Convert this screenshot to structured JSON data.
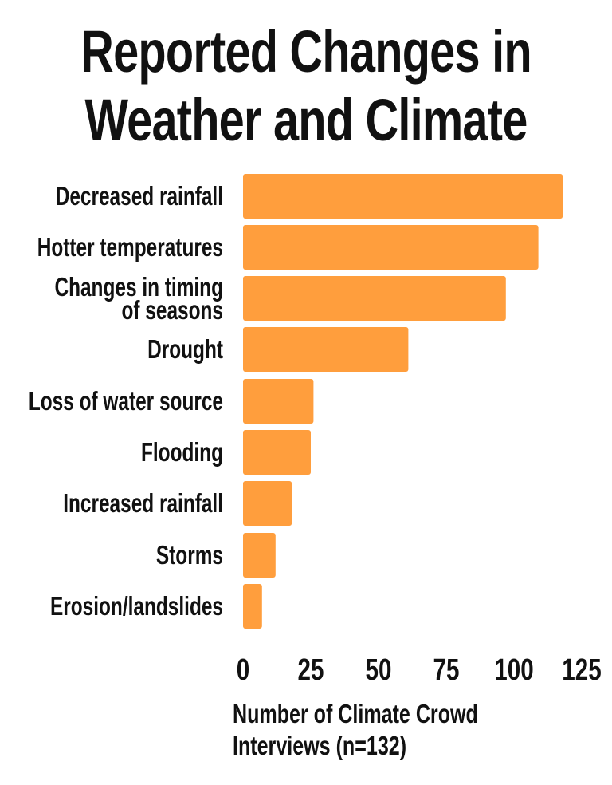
{
  "title_lines": [
    "Reported Changes in",
    "Weather and Climate"
  ],
  "chart_data": {
    "type": "bar",
    "orientation": "horizontal",
    "categories": [
      "Decreased rainfall",
      "Hotter temperatures",
      "Changes in timing of seasons",
      "Drought",
      "Loss of water source",
      "Flooding",
      "Increased rainfall",
      "Storms",
      "Erosion/landslides"
    ],
    "values": [
      118,
      109,
      97,
      61,
      26,
      25,
      18,
      12,
      7
    ],
    "xlabel": "Number of Climate Crowd Interviews (n=132)",
    "xlim": [
      0,
      125
    ],
    "xticks": [
      0,
      25,
      50,
      75,
      100,
      125
    ],
    "grid": false,
    "bar_color": "#FF9E3D"
  }
}
